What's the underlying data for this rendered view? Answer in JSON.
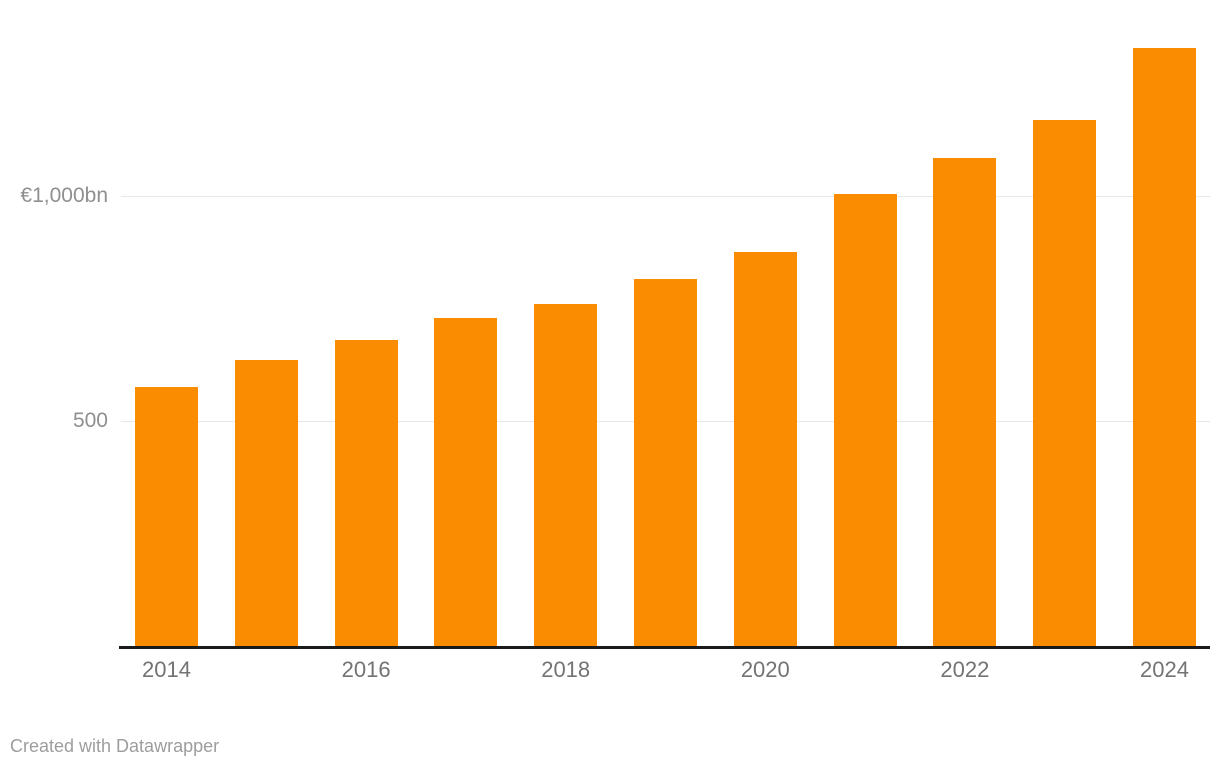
{
  "chart_data": {
    "type": "bar",
    "title": "",
    "xlabel": "",
    "ylabel": "",
    "unit": "€bn",
    "categories": [
      "2014",
      "2015",
      "2016",
      "2017",
      "2018",
      "2019",
      "2020",
      "2021",
      "2022",
      "2023",
      "2024"
    ],
    "values": [
      575,
      635,
      680,
      730,
      760,
      815,
      875,
      1005,
      1085,
      1170,
      1330
    ],
    "ylim": [
      0,
      1400
    ],
    "grid": true,
    "legend_position": "none",
    "y_axis": {
      "ticks": [
        {
          "value": 500,
          "label": "500"
        },
        {
          "value": 1000,
          "label": "€1,000bn"
        }
      ]
    },
    "x_axis": {
      "labeled_categories": [
        "2014",
        "2016",
        "2018",
        "2020",
        "2022",
        "2024"
      ]
    }
  },
  "colors": {
    "bar": "#f98c00",
    "gridline": "#e7e7e7",
    "axis_line": "#1a1a1a",
    "x_tick_text": "#737373",
    "y_tick_text": "#8f8f8f",
    "attribution_text": "#9d9d9d",
    "background": "#ffffff"
  },
  "footer": {
    "attribution": "Created with Datawrapper"
  }
}
